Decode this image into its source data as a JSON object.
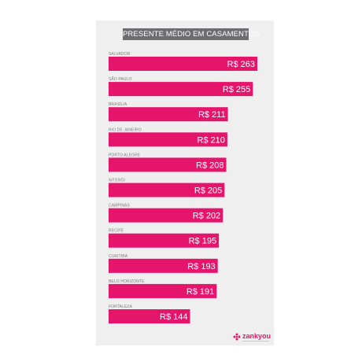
{
  "chart_data": {
    "type": "bar",
    "orientation": "horizontal",
    "title": "PRESENTE MÉDIO EM CASAMENTOS",
    "categories": [
      "SALVADOR",
      "SÃO PAULO",
      "BRASÍLIA",
      "RIO DE JANEIRO",
      "PORTO ALEGRE",
      "NITERÓI",
      "CAMPINAS",
      "RECIFE",
      "CURITIBA",
      "BELO HORIZONTE",
      "FORTALEZA"
    ],
    "values": [
      263,
      255,
      211,
      210,
      208,
      205,
      202,
      195,
      193,
      191,
      144
    ],
    "value_labels": [
      "R$ 263",
      "R$ 255",
      "R$ 211",
      "R$ 210",
      "R$ 208",
      "R$ 205",
      "R$ 202",
      "R$ 195",
      "R$ 193",
      "R$ 191",
      "R$ 144"
    ],
    "bar_color": "#e5156c",
    "xlim": [
      0,
      263
    ],
    "grid": false,
    "legend": "none"
  },
  "logo": {
    "brand": "zankyou",
    "icon": "flower-logo-icon",
    "color": "#e5156c"
  }
}
